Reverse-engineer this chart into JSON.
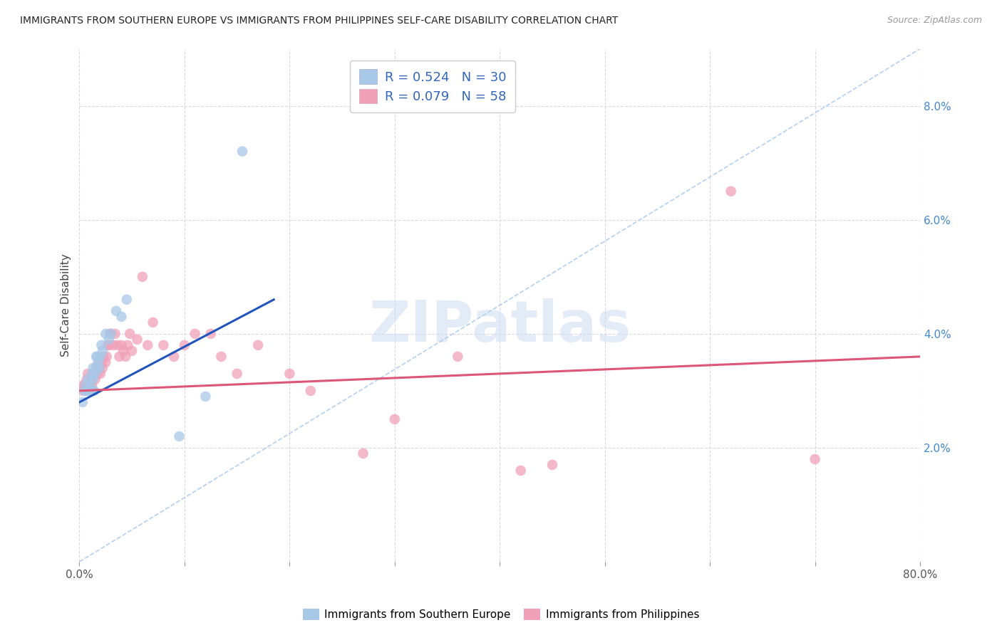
{
  "title": "IMMIGRANTS FROM SOUTHERN EUROPE VS IMMIGRANTS FROM PHILIPPINES SELF-CARE DISABILITY CORRELATION CHART",
  "source": "Source: ZipAtlas.com",
  "ylabel": "Self-Care Disability",
  "xlim": [
    0.0,
    0.8
  ],
  "ylim": [
    0.0,
    0.09
  ],
  "xtick_positions": [
    0.0,
    0.1,
    0.2,
    0.3,
    0.4,
    0.5,
    0.6,
    0.7,
    0.8
  ],
  "xtick_labels": [
    "0.0%",
    "",
    "",
    "",
    "",
    "",
    "",
    "",
    "80.0%"
  ],
  "ytick_positions": [
    0.02,
    0.04,
    0.06,
    0.08
  ],
  "ytick_labels": [
    "2.0%",
    "4.0%",
    "6.0%",
    "8.0%"
  ],
  "legend_label1": "R = 0.524   N = 30",
  "legend_label2": "R = 0.079   N = 58",
  "color_blue": "#a8c8e8",
  "color_pink": "#f0a0b8",
  "line_color_blue": "#2255bb",
  "line_color_pink": "#dd5577",
  "diag_color": "#aaccee",
  "background": "#ffffff",
  "grid_color": "#d8d8e8",
  "blue_line_x": [
    0.0,
    0.185
  ],
  "blue_line_y": [
    0.028,
    0.046
  ],
  "pink_line_x": [
    0.0,
    0.8
  ],
  "pink_line_y": [
    0.03,
    0.036
  ],
  "blue_points_x": [
    0.003,
    0.005,
    0.006,
    0.007,
    0.008,
    0.009,
    0.01,
    0.011,
    0.012,
    0.013,
    0.013,
    0.014,
    0.015,
    0.016,
    0.016,
    0.017,
    0.018,
    0.019,
    0.02,
    0.021,
    0.022,
    0.025,
    0.028,
    0.03,
    0.035,
    0.04,
    0.045,
    0.095,
    0.12,
    0.155
  ],
  "blue_points_y": [
    0.028,
    0.03,
    0.031,
    0.03,
    0.032,
    0.03,
    0.031,
    0.03,
    0.033,
    0.032,
    0.034,
    0.03,
    0.033,
    0.034,
    0.036,
    0.036,
    0.035,
    0.034,
    0.036,
    0.038,
    0.037,
    0.04,
    0.039,
    0.04,
    0.044,
    0.043,
    0.046,
    0.022,
    0.029,
    0.072
  ],
  "pink_points_x": [
    0.003,
    0.004,
    0.005,
    0.006,
    0.007,
    0.008,
    0.009,
    0.01,
    0.011,
    0.012,
    0.013,
    0.014,
    0.015,
    0.016,
    0.017,
    0.018,
    0.019,
    0.02,
    0.021,
    0.022,
    0.023,
    0.025,
    0.026,
    0.027,
    0.028,
    0.029,
    0.03,
    0.032,
    0.034,
    0.036,
    0.038,
    0.04,
    0.042,
    0.044,
    0.046,
    0.048,
    0.05,
    0.055,
    0.06,
    0.065,
    0.07,
    0.08,
    0.09,
    0.1,
    0.11,
    0.125,
    0.135,
    0.15,
    0.17,
    0.2,
    0.22,
    0.27,
    0.3,
    0.36,
    0.42,
    0.45,
    0.62,
    0.7
  ],
  "pink_points_y": [
    0.03,
    0.031,
    0.031,
    0.03,
    0.032,
    0.033,
    0.031,
    0.03,
    0.032,
    0.031,
    0.03,
    0.033,
    0.032,
    0.034,
    0.033,
    0.035,
    0.034,
    0.033,
    0.035,
    0.034,
    0.036,
    0.035,
    0.036,
    0.038,
    0.038,
    0.04,
    0.04,
    0.038,
    0.04,
    0.038,
    0.036,
    0.038,
    0.037,
    0.036,
    0.038,
    0.04,
    0.037,
    0.039,
    0.05,
    0.038,
    0.042,
    0.038,
    0.036,
    0.038,
    0.04,
    0.04,
    0.036,
    0.033,
    0.038,
    0.033,
    0.03,
    0.019,
    0.025,
    0.036,
    0.016,
    0.017,
    0.065,
    0.018
  ]
}
